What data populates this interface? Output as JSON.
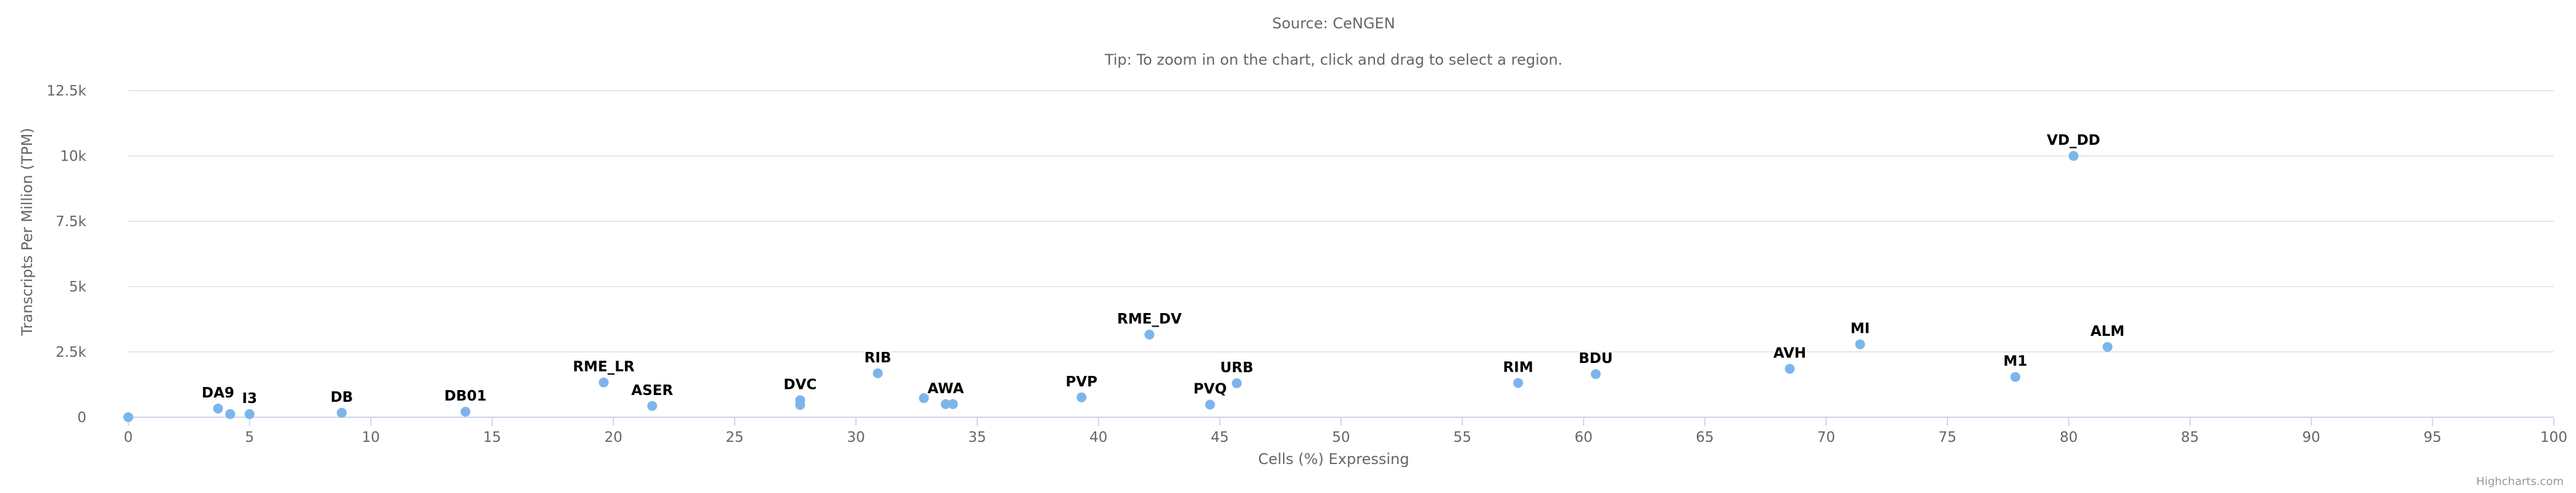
{
  "chart_data": {
    "type": "scatter",
    "subtitle_lines": [
      "Source: CeNGEN",
      "Tip: To zoom in on the chart, click and drag to select a region."
    ],
    "xlabel": "Cells (%) Expressing",
    "ylabel": "Transcripts Per Million (TPM)",
    "xlim": [
      0,
      100
    ],
    "ylim": [
      0,
      12500
    ],
    "x_ticks": [
      0,
      5,
      10,
      15,
      20,
      25,
      30,
      35,
      40,
      45,
      50,
      55,
      60,
      65,
      70,
      75,
      80,
      85,
      90,
      95,
      100
    ],
    "y_ticks": [
      {
        "value": 0,
        "label": "0"
      },
      {
        "value": 2500,
        "label": "2.5k"
      },
      {
        "value": 5000,
        "label": "5k"
      },
      {
        "value": 7500,
        "label": "7.5k"
      },
      {
        "value": 10000,
        "label": "10k"
      },
      {
        "value": 12500,
        "label": "12.5k"
      }
    ],
    "grid": true,
    "point_color": "#7cb5ec",
    "points": [
      {
        "x": 0,
        "y": 0,
        "label": ""
      },
      {
        "x": 3.7,
        "y": 330,
        "label": "DA9"
      },
      {
        "x": 4.2,
        "y": 120,
        "label": ""
      },
      {
        "x": 5.0,
        "y": 120,
        "label": "I3"
      },
      {
        "x": 8.8,
        "y": 170,
        "label": "DB"
      },
      {
        "x": 13.9,
        "y": 210,
        "label": "DB01"
      },
      {
        "x": 19.6,
        "y": 1330,
        "label": "RME_LR"
      },
      {
        "x": 21.6,
        "y": 430,
        "label": "ASER"
      },
      {
        "x": 27.7,
        "y": 650,
        "label": "DVC"
      },
      {
        "x": 27.7,
        "y": 470,
        "label": ""
      },
      {
        "x": 30.9,
        "y": 1680,
        "label": "RIB"
      },
      {
        "x": 32.8,
        "y": 730,
        "label": ""
      },
      {
        "x": 33.7,
        "y": 500,
        "label": "AWA"
      },
      {
        "x": 34.0,
        "y": 500,
        "label": ""
      },
      {
        "x": 39.3,
        "y": 760,
        "label": "PVP"
      },
      {
        "x": 42.1,
        "y": 3160,
        "label": "RME_DV"
      },
      {
        "x": 44.6,
        "y": 480,
        "label": "PVQ"
      },
      {
        "x": 45.7,
        "y": 1300,
        "label": "URB"
      },
      {
        "x": 57.3,
        "y": 1310,
        "label": "RIM"
      },
      {
        "x": 60.5,
        "y": 1650,
        "label": "BDU"
      },
      {
        "x": 68.5,
        "y": 1850,
        "label": "AVH"
      },
      {
        "x": 71.4,
        "y": 2790,
        "label": "MI"
      },
      {
        "x": 77.8,
        "y": 1540,
        "label": "M1"
      },
      {
        "x": 80.2,
        "y": 10000,
        "label": "VD_DD"
      },
      {
        "x": 81.6,
        "y": 2690,
        "label": "ALM"
      }
    ]
  },
  "credits": "Highcharts.com"
}
